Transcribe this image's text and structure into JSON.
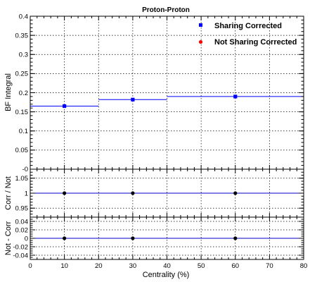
{
  "chart_data": [
    {
      "type": "scatter",
      "title": "Proton-Proton",
      "ylabel": "BF Integral",
      "ylim": [
        0,
        0.4
      ],
      "y_ticks": [
        "0.05",
        "0.1",
        "0.15",
        "0.2",
        "0.25",
        "0.3",
        "0.35",
        "0.4"
      ],
      "y_cut_label": "-0",
      "xlim": [
        0,
        80
      ],
      "grid": true,
      "legend_position": "top-right",
      "series": [
        {
          "name": "Sharing Corrected",
          "color": "#0000ff",
          "marker": "square",
          "points": [
            {
              "x": 10,
              "xlow": 0,
              "xhigh": 20,
              "y": 0.165
            },
            {
              "x": 30,
              "xlow": 20,
              "xhigh": 40,
              "y": 0.182
            },
            {
              "x": 60,
              "xlow": 40,
              "xhigh": 80,
              "y": 0.19
            }
          ]
        },
        {
          "name": "Not Sharing Corrected",
          "color": "#ff0000",
          "marker": "circle",
          "points": [
            {
              "x": 10,
              "xlow": 0,
              "xhigh": 20,
              "y": 0.165
            },
            {
              "x": 30,
              "xlow": 20,
              "xhigh": 40,
              "y": 0.182
            },
            {
              "x": 60,
              "xlow": 40,
              "xhigh": 80,
              "y": 0.19
            }
          ]
        }
      ]
    },
    {
      "type": "scatter",
      "ylabel": "Corr / Not",
      "ylim": [
        0.92,
        1.08
      ],
      "y_ticks": [
        "0.95",
        "1",
        "1.05"
      ],
      "xlim": [
        0,
        80
      ],
      "grid": true,
      "reference_line_y": 1,
      "points": [
        {
          "x": 10,
          "y": 1.0,
          "yerr": 0.005
        },
        {
          "x": 30,
          "y": 1.0,
          "yerr": 0.005
        },
        {
          "x": 60,
          "y": 1.0,
          "yerr": 0.005
        }
      ]
    },
    {
      "type": "scatter",
      "ylabel": "Not - Corr",
      "xlabel": "Centrality (%)",
      "ylim": [
        -0.05,
        0.05
      ],
      "y_ticks": [
        "-0.04",
        "-0.02",
        "0",
        "0.02",
        "0.04"
      ],
      "xlim": [
        0,
        80
      ],
      "x_ticks": [
        "0",
        "10",
        "20",
        "30",
        "40",
        "50",
        "60",
        "70",
        "80"
      ],
      "grid": true,
      "reference_line_y": 0,
      "points": [
        {
          "x": 10,
          "y": 0
        },
        {
          "x": 30,
          "y": 0
        },
        {
          "x": 60,
          "y": 0
        }
      ]
    }
  ]
}
